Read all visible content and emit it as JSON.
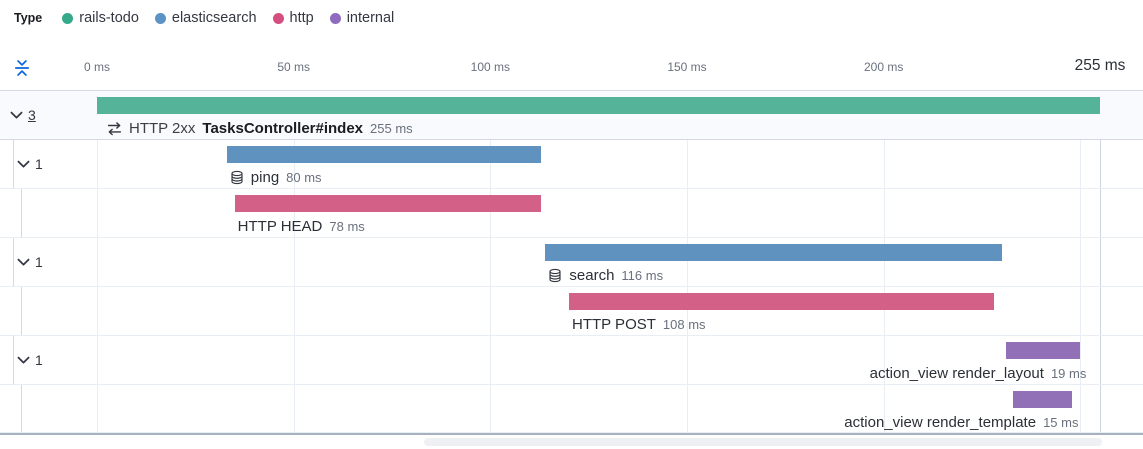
{
  "legend": {
    "title": "Type",
    "items": [
      {
        "label": "rails-todo",
        "color": "#35A989"
      },
      {
        "label": "elasticsearch",
        "color": "#5C92C6"
      },
      {
        "label": "http",
        "color": "#D44F80"
      },
      {
        "label": "internal",
        "color": "#8F6BBF"
      }
    ]
  },
  "toolbar": {
    "collapse_icon": "fold-icon",
    "collapse_color": "#0b64dd"
  },
  "axis": {
    "unit": "ms",
    "range_ms": [
      0,
      255
    ],
    "ticks": [
      {
        "label": "0 ms",
        "ms": 0
      },
      {
        "label": "50 ms",
        "ms": 50
      },
      {
        "label": "100 ms",
        "ms": 100
      },
      {
        "label": "150 ms",
        "ms": 150
      },
      {
        "label": "200 ms",
        "ms": 200
      }
    ],
    "minor_gridline_ms": 250,
    "end": {
      "label": "255 ms",
      "ms": 255
    }
  },
  "rows": [
    {
      "kind": "transaction",
      "depth": 0,
      "expander": {
        "count": "3",
        "underline": true
      },
      "icon": "merge-icon",
      "prefix": "HTTP 2xx",
      "name": "TasksController#index",
      "bold_name": true,
      "duration_label": "255 ms",
      "highlighted": true,
      "label_align": "left",
      "bar": {
        "start_ms": 0,
        "duration_ms": 255,
        "color": "#54B399"
      }
    },
    {
      "kind": "span",
      "depth": 1,
      "expander": {
        "count": "1",
        "underline": false
      },
      "icon": "database-icon",
      "prefix": null,
      "name": "ping",
      "bold_name": false,
      "duration_label": "80 ms",
      "highlighted": false,
      "label_align": "left",
      "bar": {
        "start_ms": 33,
        "duration_ms": 80,
        "color": "#6092C0"
      }
    },
    {
      "kind": "span",
      "depth": 2,
      "expander": null,
      "icon": null,
      "prefix": null,
      "name": "HTTP HEAD",
      "bold_name": false,
      "duration_label": "78 ms",
      "highlighted": false,
      "label_align": "left",
      "bar": {
        "start_ms": 35,
        "duration_ms": 78,
        "color": "#D36086"
      }
    },
    {
      "kind": "span",
      "depth": 1,
      "expander": {
        "count": "1",
        "underline": false
      },
      "icon": "database-icon",
      "prefix": null,
      "name": "search",
      "bold_name": false,
      "duration_label": "116 ms",
      "highlighted": false,
      "label_align": "left",
      "bar": {
        "start_ms": 114,
        "duration_ms": 116,
        "color": "#6092C0"
      }
    },
    {
      "kind": "span",
      "depth": 2,
      "expander": null,
      "icon": null,
      "prefix": null,
      "name": "HTTP POST",
      "bold_name": false,
      "duration_label": "108 ms",
      "highlighted": false,
      "label_align": "left",
      "bar": {
        "start_ms": 120,
        "duration_ms": 108,
        "color": "#D36086"
      }
    },
    {
      "kind": "span",
      "depth": 1,
      "expander": {
        "count": "1",
        "underline": false
      },
      "icon": null,
      "prefix": null,
      "name": "action_view render_layout",
      "bold_name": false,
      "duration_label": "19 ms",
      "highlighted": false,
      "label_align": "right",
      "bar": {
        "start_ms": 231,
        "duration_ms": 19,
        "color": "#9170B8"
      }
    },
    {
      "kind": "span",
      "depth": 2,
      "expander": null,
      "icon": null,
      "prefix": null,
      "name": "action_view render_template",
      "bold_name": false,
      "duration_label": "15 ms",
      "highlighted": false,
      "label_align": "right",
      "bar": {
        "start_ms": 233,
        "duration_ms": 15,
        "color": "#9170B8"
      }
    }
  ],
  "chart_data": {
    "type": "bar",
    "subtype": "trace-waterfall",
    "title": "",
    "xlabel": "",
    "x_unit": "ms",
    "xlim": [
      0,
      255
    ],
    "x_ticks": [
      0,
      50,
      100,
      150,
      200,
      255
    ],
    "legend_position": "top-left",
    "grid": true,
    "legend": [
      "rails-todo",
      "elasticsearch",
      "http",
      "internal"
    ],
    "items": [
      {
        "name": "HTTP 2xx TasksController#index",
        "type": "rails-todo",
        "start_ms": 0,
        "duration_ms": 255,
        "children_badge": 3
      },
      {
        "name": "ping",
        "type": "elasticsearch",
        "start_ms": 33,
        "duration_ms": 80,
        "children_badge": 1
      },
      {
        "name": "HTTP HEAD",
        "type": "http",
        "start_ms": 35,
        "duration_ms": 78
      },
      {
        "name": "search",
        "type": "elasticsearch",
        "start_ms": 114,
        "duration_ms": 116,
        "children_badge": 1
      },
      {
        "name": "HTTP POST",
        "type": "http",
        "start_ms": 120,
        "duration_ms": 108
      },
      {
        "name": "action_view render_layout",
        "type": "internal",
        "start_ms": 231,
        "duration_ms": 19,
        "children_badge": 1
      },
      {
        "name": "action_view render_template",
        "type": "internal",
        "start_ms": 233,
        "duration_ms": 15
      }
    ]
  }
}
